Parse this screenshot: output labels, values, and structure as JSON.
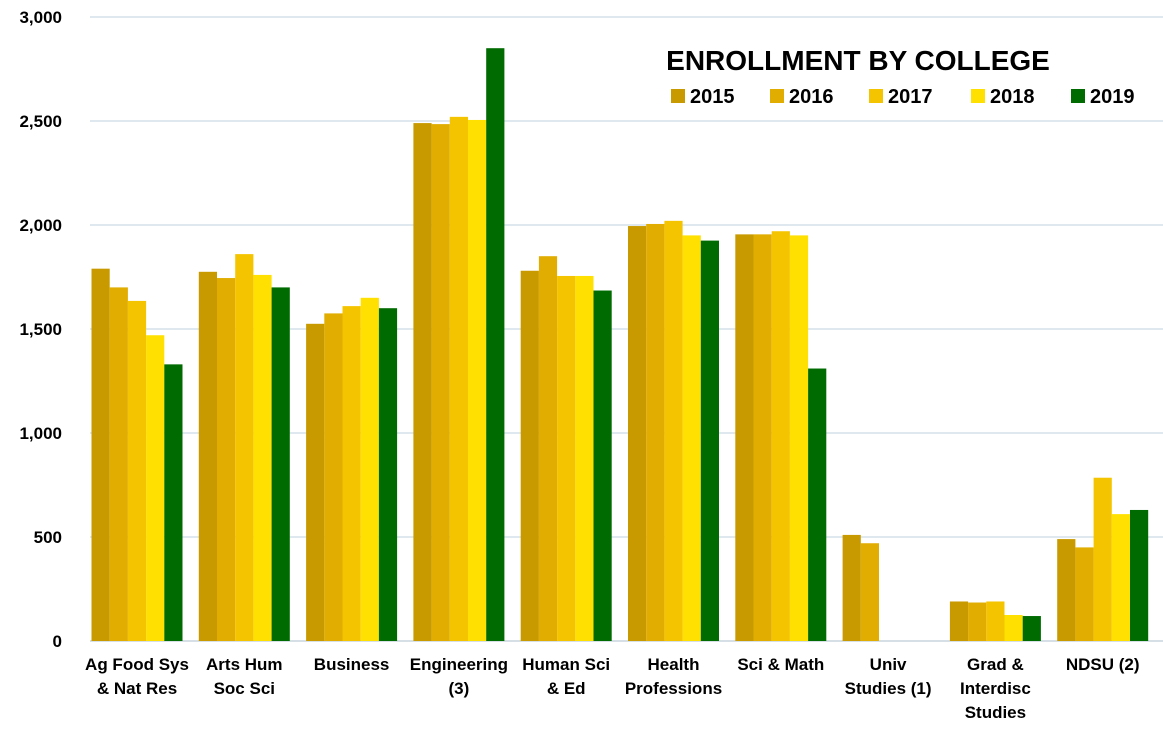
{
  "chart_data": {
    "type": "bar",
    "title": "ENROLLMENT BY COLLEGE",
    "categories": [
      [
        "Ag Food Sys",
        "& Nat Res"
      ],
      [
        "Arts Hum",
        "Soc Sci"
      ],
      [
        "Business"
      ],
      [
        "Engineering",
        "(3)"
      ],
      [
        "Human Sci",
        "& Ed"
      ],
      [
        "Health",
        "Professions"
      ],
      [
        "Sci & Math"
      ],
      [
        "Univ",
        "Studies (1)"
      ],
      [
        "Grad &",
        "Interdisc",
        "Studies"
      ],
      [
        "NDSU (2)"
      ]
    ],
    "series": [
      {
        "name": "2015",
        "color": "#c99a00",
        "values": [
          1790,
          1775,
          1525,
          2490,
          1780,
          1995,
          1955,
          510,
          190,
          490
        ]
      },
      {
        "name": "2016",
        "color": "#e0ad00",
        "values": [
          1700,
          1745,
          1575,
          2485,
          1850,
          2005,
          1955,
          470,
          185,
          450
        ]
      },
      {
        "name": "2017",
        "color": "#f5c400",
        "values": [
          1635,
          1860,
          1610,
          2520,
          1755,
          2020,
          1970,
          null,
          190,
          785
        ]
      },
      {
        "name": "2018",
        "color": "#ffe000",
        "values": [
          1470,
          1760,
          1650,
          2505,
          1755,
          1950,
          1950,
          null,
          125,
          610
        ]
      },
      {
        "name": "2019",
        "color": "#006b00",
        "values": [
          1330,
          1700,
          1600,
          2850,
          1685,
          1925,
          1310,
          null,
          120,
          630
        ]
      }
    ],
    "ylim": [
      0,
      3000
    ],
    "yticks": [
      "0",
      "500",
      "1,000",
      "1,500",
      "2,000",
      "2,500",
      "3,000"
    ],
    "ytick_values": [
      0,
      500,
      1000,
      1500,
      2000,
      2500,
      3000
    ],
    "grid": true,
    "legend_position": "top-right"
  }
}
